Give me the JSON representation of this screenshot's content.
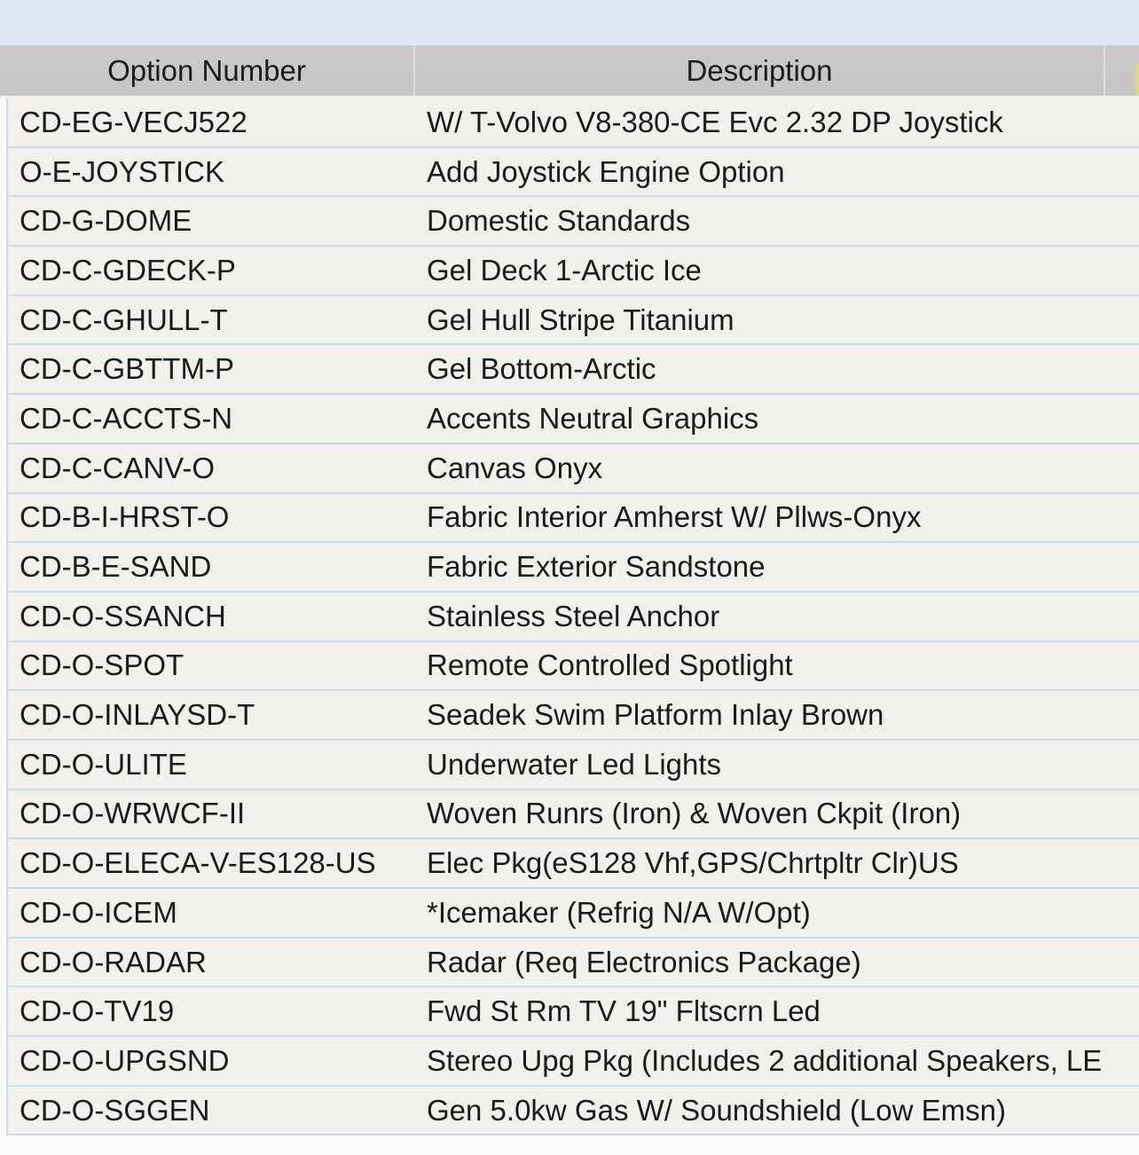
{
  "table": {
    "header": {
      "option_number": "Option Number",
      "description": "Description"
    },
    "rows": [
      {
        "option_number": "CD-EG-VECJ522",
        "description": "W/ T-Volvo V8-380-CE Evc 2.32 DP Joystick"
      },
      {
        "option_number": "O-E-JOYSTICK",
        "description": "Add Joystick Engine Option"
      },
      {
        "option_number": "CD-G-DOME",
        "description": "Domestic Standards"
      },
      {
        "option_number": "CD-C-GDECK-P",
        "description": "Gel Deck 1-Arctic Ice"
      },
      {
        "option_number": "CD-C-GHULL-T",
        "description": "Gel Hull Stripe Titanium"
      },
      {
        "option_number": "CD-C-GBTTM-P",
        "description": "Gel Bottom-Arctic"
      },
      {
        "option_number": "CD-C-ACCTS-N",
        "description": "Accents Neutral Graphics"
      },
      {
        "option_number": "CD-C-CANV-O",
        "description": "Canvas Onyx"
      },
      {
        "option_number": "CD-B-I-HRST-O",
        "description": "Fabric Interior Amherst W/ Pllws-Onyx"
      },
      {
        "option_number": "CD-B-E-SAND",
        "description": "Fabric Exterior Sandstone"
      },
      {
        "option_number": "CD-O-SSANCH",
        "description": "Stainless Steel Anchor"
      },
      {
        "option_number": "CD-O-SPOT",
        "description": "Remote Controlled Spotlight"
      },
      {
        "option_number": "CD-O-INLAYSD-T",
        "description": "Seadek Swim Platform Inlay Brown"
      },
      {
        "option_number": "CD-O-ULITE",
        "description": "Underwater Led Lights"
      },
      {
        "option_number": "CD-O-WRWCF-II",
        "description": "Woven Runrs (Iron) & Woven Ckpit (Iron)"
      },
      {
        "option_number": "CD-O-ELECA-V-ES128-US",
        "description": "Elec Pkg(eS128 Vhf,GPS/Chrtpltr Clr)US"
      },
      {
        "option_number": "CD-O-ICEM",
        "description": "*Icemaker (Refrig N/A W/Opt)"
      },
      {
        "option_number": "CD-O-RADAR",
        "description": "Radar (Req Electronics Package)"
      },
      {
        "option_number": "CD-O-TV19",
        "description": "Fwd St Rm TV 19\" Fltscrn Led"
      },
      {
        "option_number": "CD-O-UPGSND",
        "description": "Stereo Upg Pkg (Includes 2 additional Speakers, LE"
      },
      {
        "option_number": "CD-O-SGGEN",
        "description": "Gen 5.0kw Gas W/ Soundshield (Low Emsn)"
      }
    ]
  },
  "colors": {
    "top_band_bg": "#dee8f5",
    "header_bg": "#c8c7c5",
    "row_bg": "#f1f0ed",
    "row_separator": "#ccdaeb",
    "text": "#1b1b1d",
    "cutoff_header_sliver": "#d9d596"
  }
}
